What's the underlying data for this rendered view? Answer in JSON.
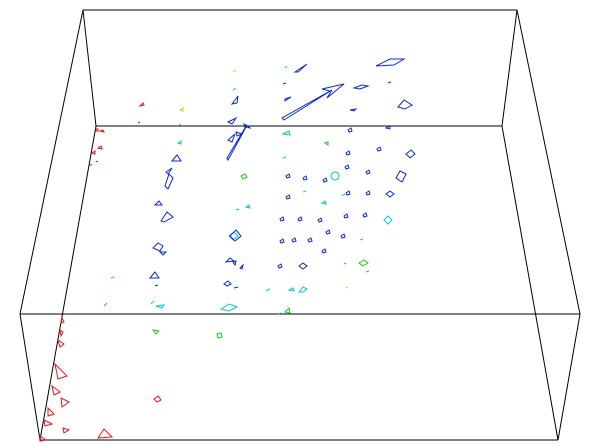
{
  "scene": {
    "background": "#ffffff",
    "box_color": "#000000",
    "palette": {
      "red": "#e8141a",
      "yellow": "#e8e800",
      "green": "#22c81e",
      "cyan": "#00d0d8",
      "blue": "#0a2ad0",
      "navy": "#0a1aa8"
    }
  }
}
